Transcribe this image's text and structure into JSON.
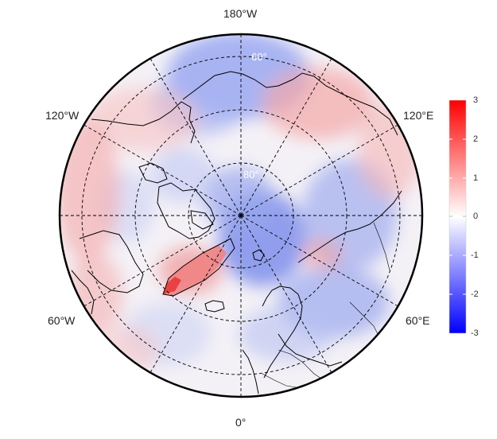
{
  "map": {
    "projection": "north-polar-stereographic",
    "longitude_labels": {
      "top": "180°W",
      "upper_left": "120°W",
      "upper_right": "120°E",
      "lower_left": "60°W",
      "lower_right": "60°E",
      "bottom": "0°"
    },
    "latitude_labels": {
      "outer": "60°",
      "inner": "80°"
    },
    "latitude_circles_deg": [
      60,
      70,
      80
    ],
    "meridians_every_deg": 30,
    "grid_style": "dashed"
  },
  "colorbar": {
    "ticks": [
      "3",
      "2",
      "1",
      "0",
      "-1",
      "-2",
      "-3"
    ],
    "min": -3,
    "max": 3,
    "colors": {
      "max": "#ff0000",
      "mid": "#ffffff",
      "min": "#0000ff"
    }
  },
  "field": {
    "description_colors": {
      "land": "#000000",
      "grid": "#000000"
    }
  }
}
